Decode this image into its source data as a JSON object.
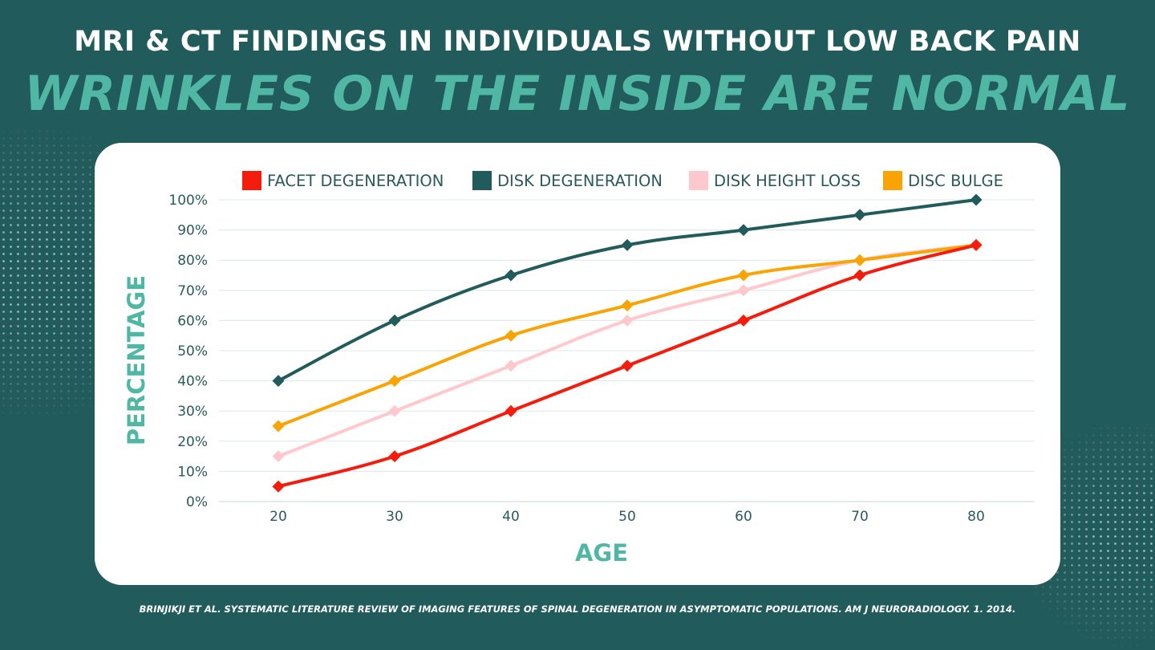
{
  "header": {
    "title": "MRI & CT FINDINGS IN INDIVIDUALS WITHOUT LOW BACK PAIN",
    "subtitle": "WRINKLES ON THE INSIDE ARE NORMAL"
  },
  "citation": "BRINJIKJI ET AL. SYSTEMATIC LITERATURE REVIEW OF IMAGING FEATURES OF SPINAL DEGENERATION IN ASYMPTOMATIC POPULATIONS. AM J NEURORADIOLOGY. 1. 2014.",
  "colors": {
    "background": "#215b5b",
    "accent": "#4fb7a4",
    "card": "#ffffff",
    "tick_text": "#2a5a5a",
    "grid": "#dbe8e6"
  },
  "chart_data": {
    "type": "line",
    "xlabel": "AGE",
    "ylabel": "PERCENTAGE",
    "x": [
      20,
      30,
      40,
      50,
      60,
      70,
      80
    ],
    "ylim": [
      0,
      100
    ],
    "yticks": [
      "0%",
      "10%",
      "20%",
      "30%",
      "40%",
      "50%",
      "60%",
      "70%",
      "80%",
      "90%",
      "100%"
    ],
    "grid": true,
    "legend_position": "top",
    "marker": "diamond",
    "series": [
      {
        "name": "FACET DEGENERATION",
        "color": "#f41c0c",
        "values": [
          5,
          15,
          30,
          45,
          60,
          75,
          85
        ]
      },
      {
        "name": "DISK DEGENERATION",
        "color": "#215b5b",
        "values": [
          40,
          60,
          75,
          85,
          90,
          95,
          100
        ]
      },
      {
        "name": "DISK HEIGHT LOSS",
        "color": "#ffc8cc",
        "values": [
          15,
          30,
          45,
          60,
          70,
          80,
          85
        ]
      },
      {
        "name": "DISC BULGE",
        "color": "#f9a404",
        "values": [
          25,
          40,
          55,
          65,
          75,
          80,
          85
        ]
      }
    ]
  }
}
